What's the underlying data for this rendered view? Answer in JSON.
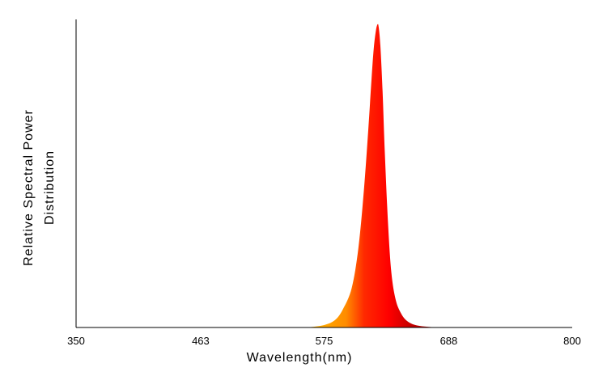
{
  "chart_data": {
    "type": "area",
    "title": "",
    "xlabel": "Wavelength(nm)",
    "ylabel_lines": [
      "Relative Spectral Power",
      "Distribution"
    ],
    "xlim": [
      350,
      800
    ],
    "ylim": [
      0,
      1
    ],
    "x_ticks": [
      350,
      463,
      575,
      688,
      800
    ],
    "grid": false,
    "series": [
      {
        "x": [
          560,
          575,
          585,
          592,
          600,
          606,
          611,
          615,
          618,
          620,
          622,
          623.5,
          624.5,
          626,
          628,
          630,
          633,
          636,
          640,
          645,
          650,
          656,
          662,
          670,
          680,
          688
        ],
        "values": [
          0.0,
          0.008,
          0.025,
          0.06,
          0.13,
          0.26,
          0.45,
          0.65,
          0.82,
          0.92,
          0.98,
          1.0,
          0.99,
          0.93,
          0.78,
          0.58,
          0.34,
          0.18,
          0.09,
          0.045,
          0.022,
          0.01,
          0.005,
          0.002,
          0.0005,
          0.0
        ]
      }
    ],
    "fill_gradient_colors": [
      "#ffd700",
      "#ff8c00",
      "#ff0000",
      "#b80000"
    ]
  }
}
